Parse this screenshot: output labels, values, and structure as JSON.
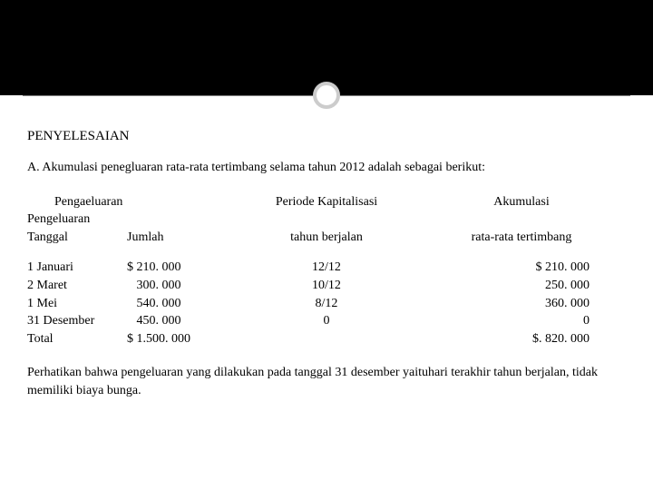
{
  "title": "PENYELESAIAN",
  "subtitle": "A. Akumulasi penegluaran rata-rata tertimbang selama tahun 2012 adalah sebagai berikut:",
  "headers": {
    "col1_top": "Pengaeluaran",
    "col1_sub": "Pengeluaran",
    "col1_a": "Tanggal",
    "col1_b": "Jumlah",
    "col2_top": "Periode Kapitalisasi",
    "col2_sub": "tahun berjalan",
    "col3_top": "Akumulasi",
    "col3_sub": "rata-rata tertimbang"
  },
  "rows": [
    {
      "date": "1 Januari",
      "amount": "$ 210. 000",
      "period": "12/12",
      "accum": "$ 210. 000"
    },
    {
      "date": "2 Maret",
      "amount": "   300. 000",
      "period": "10/12",
      "accum": "250. 000"
    },
    {
      "date": "1 Mei",
      "amount": "   540. 000",
      "period": "8/12",
      "accum": "360. 000"
    },
    {
      "date": "31 Desember",
      "amount": "   450. 000",
      "period": "0",
      "accum": "0"
    },
    {
      "date": "Total",
      "amount": "$ 1.500. 000",
      "period": "",
      "accum": "$. 820. 000"
    }
  ],
  "footer": "Perhatikan bahwa pengeluaran yang dilakukan pada tanggal 31 desember yaituhari terakhir tahun berjalan, tidak memiliki biaya bunga.",
  "colors": {
    "header_band": "#000000",
    "ring": "#cccccc",
    "line": "#808080",
    "text": "#000000",
    "bg": "#ffffff"
  }
}
